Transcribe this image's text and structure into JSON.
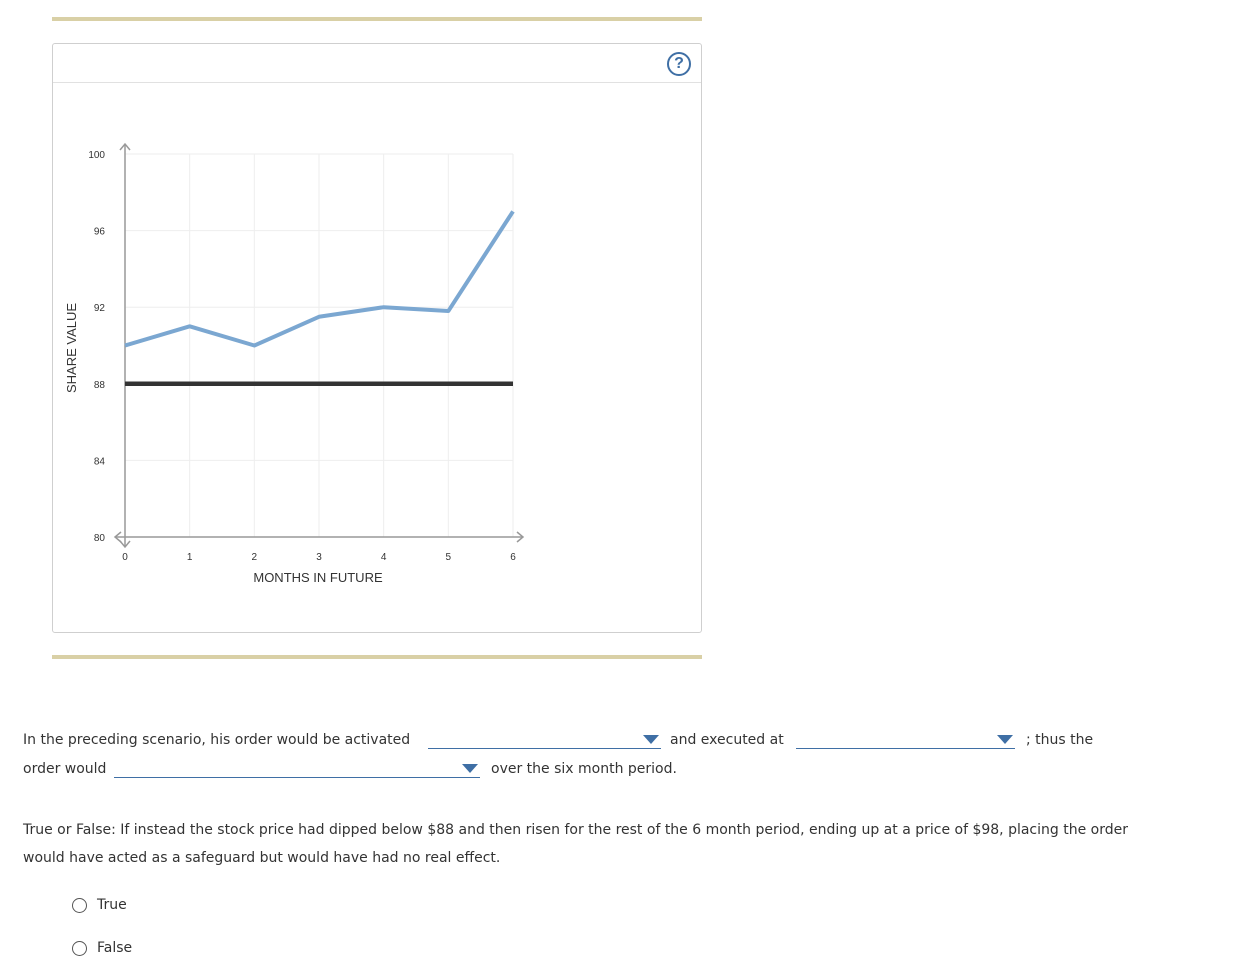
{
  "graph": {
    "help_label": "?",
    "chart_data": {
      "type": "line",
      "xlabel": "MONTHS IN FUTURE",
      "ylabel": "SHARE VALUE",
      "x_ticks": [
        "0",
        "1",
        "2",
        "3",
        "4",
        "5",
        "6"
      ],
      "y_ticks": [
        "100",
        "96",
        "92",
        "88",
        "84",
        "80"
      ],
      "xlim": [
        0,
        6
      ],
      "ylim": [
        80,
        100
      ],
      "grid": true,
      "series": [
        {
          "x": [
            0,
            1,
            2,
            3,
            4,
            5,
            6
          ],
          "values": [
            90,
            91,
            90,
            91.5,
            92,
            91.8,
            97
          ],
          "color": "#7ba7d1"
        },
        {
          "x": [
            0,
            6
          ],
          "values": [
            88,
            88
          ],
          "color": "#333333"
        }
      ]
    }
  },
  "sentence": {
    "part1": "In the preceding scenario, his order would be activated",
    "part2": "and executed at",
    "part3": "; thus the",
    "part4": "order would",
    "part5": "over the six month period.",
    "dropdown1_value": "",
    "dropdown2_value": "",
    "dropdown3_value": ""
  },
  "question": {
    "text": "True or False: If instead the stock price had dipped below $88 and then risen for the rest of the 6 month period, ending up at a price of $98, placing the order would have acted as a safeguard but would have had no real effect.",
    "options": [
      "True",
      "False"
    ]
  },
  "colors": {
    "accent": "#3f6fa5",
    "rule": "#d9d0a6",
    "series_line": "#7ba7d1",
    "threshold_line": "#333333"
  }
}
